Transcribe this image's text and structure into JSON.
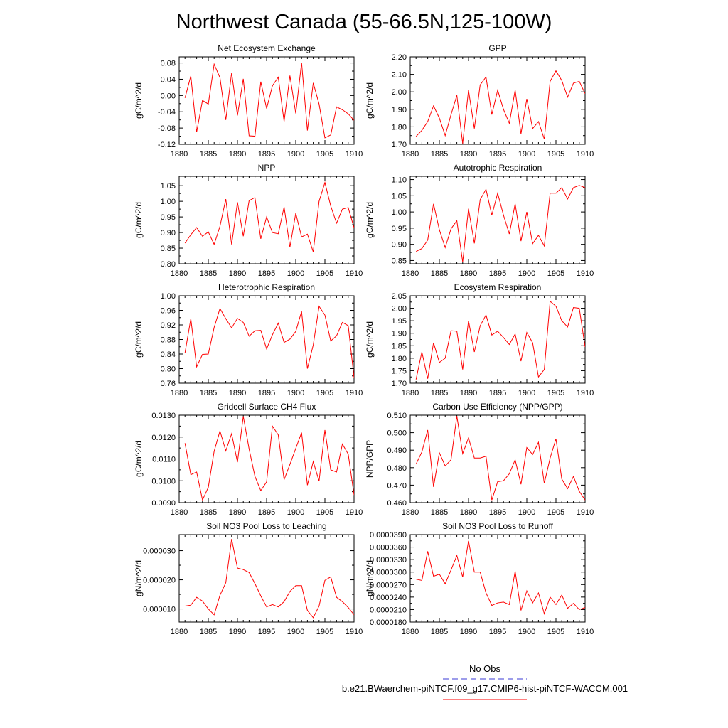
{
  "figure": {
    "title": "Northwest Canada (55-66.5N,125-100W)"
  },
  "legend": {
    "entries": [
      {
        "label": "No Obs",
        "color": "#3b3bd6",
        "style": "dashed"
      },
      {
        "label": "b.e21.BWaerchem-piNTCF.f09_g17.CMIP6-hist-piNTCF-WACCM.001",
        "color": "#ff0000",
        "style": "solid"
      }
    ]
  },
  "chart_data": [
    {
      "type": "line",
      "title": "Net Ecosystem Exchange",
      "ylabel": "gC/m^2/d",
      "xlim": [
        1880,
        1910
      ],
      "ylim": [
        -0.12,
        0.095
      ],
      "xticks": [
        "1880",
        "1885",
        "1890",
        "1895",
        "1900",
        "1905",
        "1910"
      ],
      "yticks": [
        "-0.12",
        "-0.08",
        "-0.04",
        "0.00",
        "0.04",
        "0.08"
      ],
      "x": [
        1881,
        1882,
        1883,
        1884,
        1885,
        1886,
        1887,
        1888,
        1889,
        1890,
        1891,
        1892,
        1893,
        1894,
        1895,
        1896,
        1897,
        1898,
        1899,
        1900,
        1901,
        1902,
        1903,
        1904,
        1905,
        1906,
        1907,
        1908,
        1909,
        1910
      ],
      "series": [
        {
          "color": "#ff0000",
          "values": [
            -0.006,
            0.048,
            -0.09,
            -0.012,
            -0.021,
            0.077,
            0.044,
            -0.06,
            0.056,
            -0.049,
            0.041,
            -0.099,
            -0.1,
            0.034,
            -0.032,
            0.024,
            0.045,
            -0.064,
            0.049,
            -0.044,
            0.081,
            -0.086,
            0.031,
            -0.021,
            -0.104,
            -0.097,
            -0.028,
            -0.035,
            -0.045,
            -0.061
          ]
        }
      ]
    },
    {
      "type": "line",
      "title": "GPP",
      "ylabel": "gC/m^2/d",
      "xlim": [
        1880,
        1910
      ],
      "ylim": [
        1.7,
        2.2
      ],
      "xticks": [
        "1880",
        "1885",
        "1890",
        "1895",
        "1900",
        "1905",
        "1910"
      ],
      "yticks": [
        "1.70",
        "1.80",
        "1.90",
        "2.00",
        "2.10",
        "2.20"
      ],
      "x": [
        1881,
        1882,
        1883,
        1884,
        1885,
        1886,
        1887,
        1888,
        1889,
        1890,
        1891,
        1892,
        1893,
        1894,
        1895,
        1896,
        1897,
        1898,
        1899,
        1900,
        1901,
        1902,
        1903,
        1904,
        1905,
        1906,
        1907,
        1908,
        1909,
        1910
      ],
      "series": [
        {
          "color": "#ff0000",
          "values": [
            1.745,
            1.78,
            1.83,
            1.92,
            1.85,
            1.75,
            1.87,
            1.98,
            1.705,
            2.01,
            1.79,
            2.04,
            2.085,
            1.87,
            2.01,
            1.9,
            1.82,
            2.01,
            1.76,
            1.96,
            1.79,
            1.83,
            1.73,
            2.06,
            2.12,
            2.065,
            1.97,
            2.05,
            2.06,
            1.99
          ]
        }
      ]
    },
    {
      "type": "line",
      "title": "NPP",
      "ylabel": "gC/m^2/d",
      "xlim": [
        1880,
        1910
      ],
      "ylim": [
        0.8,
        1.08
      ],
      "xticks": [
        "1880",
        "1885",
        "1890",
        "1895",
        "1900",
        "1905",
        "1910"
      ],
      "yticks": [
        "0.80",
        "0.85",
        "0.90",
        "0.95",
        "1.00",
        "1.05"
      ],
      "x": [
        1881,
        1882,
        1883,
        1884,
        1885,
        1886,
        1887,
        1888,
        1889,
        1890,
        1891,
        1892,
        1893,
        1894,
        1895,
        1896,
        1897,
        1898,
        1899,
        1900,
        1901,
        1902,
        1903,
        1904,
        1905,
        1906,
        1907,
        1908,
        1909,
        1910
      ],
      "series": [
        {
          "color": "#ff0000",
          "values": [
            0.866,
            0.893,
            0.916,
            0.888,
            0.902,
            0.862,
            0.92,
            1.007,
            0.862,
            0.997,
            0.888,
            1.002,
            1.012,
            0.88,
            0.95,
            0.9,
            0.896,
            0.982,
            0.853,
            0.962,
            0.886,
            0.895,
            0.838,
            1.0,
            1.06,
            0.985,
            0.93,
            0.975,
            0.98,
            0.915
          ]
        }
      ]
    },
    {
      "type": "line",
      "title": "Autotrophic Respiration",
      "ylabel": "gC/m^2/d",
      "xlim": [
        1880,
        1910
      ],
      "ylim": [
        0.84,
        1.11
      ],
      "xticks": [
        "1880",
        "1885",
        "1890",
        "1895",
        "1900",
        "1905",
        "1910"
      ],
      "yticks": [
        "0.85",
        "0.90",
        "0.95",
        "1.00",
        "1.05",
        "1.10"
      ],
      "x": [
        1881,
        1882,
        1883,
        1884,
        1885,
        1886,
        1887,
        1888,
        1889,
        1890,
        1891,
        1892,
        1893,
        1894,
        1895,
        1896,
        1897,
        1898,
        1899,
        1900,
        1901,
        1902,
        1903,
        1904,
        1905,
        1906,
        1907,
        1908,
        1909,
        1910
      ],
      "series": [
        {
          "color": "#ff0000",
          "values": [
            0.878,
            0.887,
            0.913,
            1.025,
            0.945,
            0.89,
            0.948,
            0.973,
            0.845,
            1.01,
            0.903,
            1.038,
            1.07,
            0.99,
            1.058,
            0.99,
            0.932,
            1.025,
            0.91,
            1.0,
            0.902,
            0.928,
            0.895,
            1.058,
            1.058,
            1.075,
            1.04,
            1.075,
            1.082,
            1.075
          ]
        }
      ]
    },
    {
      "type": "line",
      "title": "Heterotrophic Respiration",
      "ylabel": "gC/m^2/d",
      "xlim": [
        1880,
        1910
      ],
      "ylim": [
        0.76,
        1.0
      ],
      "xticks": [
        "1880",
        "1885",
        "1890",
        "1895",
        "1900",
        "1905",
        "1910"
      ],
      "yticks": [
        "0.76",
        "0.80",
        "0.84",
        "0.88",
        "0.92",
        "0.96",
        "1.00"
      ],
      "x": [
        1881,
        1882,
        1883,
        1884,
        1885,
        1886,
        1887,
        1888,
        1889,
        1890,
        1891,
        1892,
        1893,
        1894,
        1895,
        1896,
        1897,
        1898,
        1899,
        1900,
        1901,
        1902,
        1903,
        1904,
        1905,
        1906,
        1907,
        1908,
        1909,
        1910
      ],
      "series": [
        {
          "color": "#ff0000",
          "values": [
            0.843,
            0.937,
            0.805,
            0.839,
            0.84,
            0.913,
            0.965,
            0.937,
            0.912,
            0.938,
            0.927,
            0.889,
            0.904,
            0.905,
            0.854,
            0.893,
            0.925,
            0.872,
            0.881,
            0.902,
            0.957,
            0.8,
            0.865,
            0.971,
            0.947,
            0.876,
            0.89,
            0.927,
            0.918,
            0.775
          ]
        }
      ]
    },
    {
      "type": "line",
      "title": "Ecosystem Respiration",
      "ylabel": "gC/m^2/d",
      "xlim": [
        1880,
        1910
      ],
      "ylim": [
        1.7,
        2.05
      ],
      "xticks": [
        "1880",
        "1885",
        "1890",
        "1895",
        "1900",
        "1905",
        "1910"
      ],
      "yticks": [
        "1.70",
        "1.75",
        "1.80",
        "1.85",
        "1.90",
        "1.95",
        "2.00",
        "2.05"
      ],
      "x": [
        1881,
        1882,
        1883,
        1884,
        1885,
        1886,
        1887,
        1888,
        1889,
        1890,
        1891,
        1892,
        1893,
        1894,
        1895,
        1896,
        1897,
        1898,
        1899,
        1900,
        1901,
        1902,
        1903,
        1904,
        1905,
        1906,
        1907,
        1908,
        1909,
        1910
      ],
      "series": [
        {
          "color": "#ff0000",
          "values": [
            1.715,
            1.825,
            1.718,
            1.862,
            1.783,
            1.8,
            1.91,
            1.908,
            1.755,
            1.95,
            1.825,
            1.93,
            1.973,
            1.893,
            1.908,
            1.883,
            1.855,
            1.897,
            1.788,
            1.903,
            1.862,
            1.725,
            1.755,
            2.028,
            2.008,
            1.95,
            1.925,
            2.003,
            2.0,
            1.845
          ]
        }
      ]
    },
    {
      "type": "line",
      "title": "Gridcell Surface CH4 Flux",
      "ylabel": "gC/m^2/d",
      "xlim": [
        1880,
        1910
      ],
      "ylim": [
        0.009,
        0.013
      ],
      "xticks": [
        "1880",
        "1885",
        "1890",
        "1895",
        "1900",
        "1905",
        "1910"
      ],
      "yticks": [
        "0.0090",
        "0.0100",
        "0.0110",
        "0.0120",
        "0.0130"
      ],
      "x": [
        1881,
        1882,
        1883,
        1884,
        1885,
        1886,
        1887,
        1888,
        1889,
        1890,
        1891,
        1892,
        1893,
        1894,
        1895,
        1896,
        1897,
        1898,
        1899,
        1900,
        1901,
        1902,
        1903,
        1904,
        1905,
        1906,
        1907,
        1908,
        1909,
        1910
      ],
      "series": [
        {
          "color": "#ff0000",
          "values": [
            0.01172,
            0.01028,
            0.0104,
            0.00912,
            0.0097,
            0.01135,
            0.01228,
            0.01137,
            0.01215,
            0.01085,
            0.01295,
            0.01145,
            0.0102,
            0.00955,
            0.00995,
            0.0125,
            0.0121,
            0.01005,
            0.01075,
            0.01148,
            0.0122,
            0.0098,
            0.01088,
            0.00998,
            0.01232,
            0.0105,
            0.0104,
            0.01168,
            0.01122,
            0.00935
          ]
        }
      ]
    },
    {
      "type": "line",
      "title": "Carbon Use Efficiency (NPP/GPP)",
      "ylabel": "NPP/GPP",
      "xlim": [
        1880,
        1910
      ],
      "ylim": [
        0.46,
        0.51
      ],
      "xticks": [
        "1880",
        "1885",
        "1890",
        "1895",
        "1900",
        "1905",
        "1910"
      ],
      "yticks": [
        "0.460",
        "0.470",
        "0.480",
        "0.490",
        "0.500",
        "0.510"
      ],
      "x": [
        1881,
        1882,
        1883,
        1884,
        1885,
        1886,
        1887,
        1888,
        1889,
        1890,
        1891,
        1892,
        1893,
        1894,
        1895,
        1896,
        1897,
        1898,
        1899,
        1900,
        1901,
        1902,
        1903,
        1904,
        1905,
        1906,
        1907,
        1908,
        1909,
        1910
      ],
      "series": [
        {
          "color": "#ff0000",
          "values": [
            0.482,
            0.489,
            0.5015,
            0.469,
            0.4885,
            0.481,
            0.4845,
            0.5095,
            0.488,
            0.497,
            0.4855,
            0.4855,
            0.4865,
            0.4615,
            0.472,
            0.4725,
            0.4765,
            0.4845,
            0.4705,
            0.4915,
            0.4875,
            0.4945,
            0.471,
            0.4855,
            0.4965,
            0.4735,
            0.468,
            0.475,
            0.4665,
            0.4615
          ]
        }
      ]
    },
    {
      "type": "line",
      "title": "Soil NO3 Pool Loss to Leaching",
      "ylabel": "gN/m^2/d",
      "xlim": [
        1880,
        1910
      ],
      "ylim": [
        5.5e-06,
        3.55e-05
      ],
      "xticks": [
        "1880",
        "1885",
        "1890",
        "1895",
        "1900",
        "1905",
        "1910"
      ],
      "yticks": [
        "0.000010",
        "0.000020",
        "0.000030"
      ],
      "x": [
        1881,
        1882,
        1883,
        1884,
        1885,
        1886,
        1887,
        1888,
        1889,
        1890,
        1891,
        1892,
        1893,
        1894,
        1895,
        1896,
        1897,
        1898,
        1899,
        1900,
        1901,
        1902,
        1903,
        1904,
        1905,
        1906,
        1907,
        1908,
        1909,
        1910
      ],
      "series": [
        {
          "color": "#ff0000",
          "values": [
            1.1e-05,
            1.13e-05,
            1.4e-05,
            1.27e-05,
            1e-05,
            8e-06,
            1.47e-05,
            1.9e-05,
            3.4e-05,
            2.4e-05,
            2.35e-05,
            2.25e-05,
            1.87e-05,
            1.45e-05,
            1.07e-05,
            1.15e-05,
            1.07e-05,
            1.25e-05,
            1.6e-05,
            1.8e-05,
            1.8e-05,
            9.5e-06,
            7e-06,
            1.1e-05,
            1.98e-05,
            2.1e-05,
            1.4e-05,
            1.25e-05,
            1.05e-05,
            8e-06
          ]
        }
      ]
    },
    {
      "type": "line",
      "title": "Soil NO3 Pool Loss to Runoff",
      "ylabel": "gN/m^2/d",
      "xlim": [
        1880,
        1910
      ],
      "ylim": [
        1.8e-05,
        3.9e-05
      ],
      "xticks": [
        "1880",
        "1885",
        "1890",
        "1895",
        "1900",
        "1905",
        "1910"
      ],
      "yticks": [
        "0.0000180",
        "0.0000210",
        "0.0000240",
        "0.0000270",
        "0.0000300",
        "0.0000330",
        "0.0000360",
        "0.0000390"
      ],
      "x": [
        1881,
        1882,
        1883,
        1884,
        1885,
        1886,
        1887,
        1888,
        1889,
        1890,
        1891,
        1892,
        1893,
        1894,
        1895,
        1896,
        1897,
        1898,
        1899,
        1900,
        1901,
        1902,
        1903,
        1904,
        1905,
        1906,
        1907,
        1908,
        1909,
        1910
      ],
      "series": [
        {
          "color": "#ff0000",
          "values": [
            2.83e-05,
            2.8e-05,
            3.5e-05,
            2.9e-05,
            2.95e-05,
            2.72e-05,
            3.05e-05,
            3.4e-05,
            2.88e-05,
            3.75e-05,
            3e-05,
            3e-05,
            2.5e-05,
            2.2e-05,
            2.26e-05,
            2.28e-05,
            2.22e-05,
            3.02e-05,
            2.08e-05,
            2.55e-05,
            2.26e-05,
            2.5e-05,
            2e-05,
            2.4e-05,
            2.22e-05,
            2.45e-05,
            2.13e-05,
            2.25e-05,
            2.1e-05,
            2.15e-05
          ]
        }
      ]
    }
  ]
}
